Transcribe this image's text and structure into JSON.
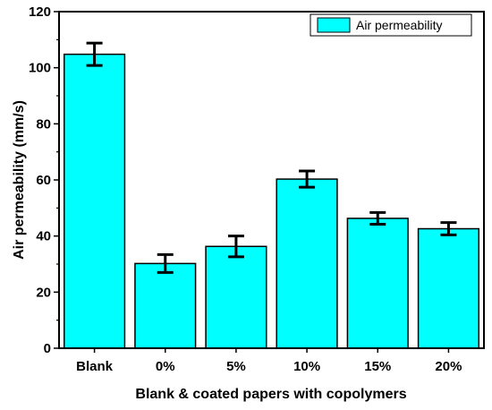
{
  "chart_data": {
    "type": "bar",
    "categories": [
      "Blank",
      "0%",
      "5%",
      "10%",
      "15%",
      "20%"
    ],
    "series": [
      {
        "name": "Air permeability",
        "values": [
          104.8,
          30.2,
          36.3,
          60.3,
          46.3,
          42.6
        ],
        "errors": [
          4.0,
          3.2,
          3.7,
          2.9,
          2.1,
          2.2
        ]
      }
    ],
    "xlabel": "Blank & coated papers with copolymers",
    "ylabel": "Air permeability (mm/s)",
    "ylim": [
      0,
      120
    ],
    "yticks": [
      0,
      20,
      40,
      60,
      80,
      100,
      120
    ],
    "grid": false,
    "legend_position": "top-right",
    "colors": {
      "bar_fill": "#00ffff",
      "bar_stroke": "#000000",
      "error_bar": "#000000"
    }
  }
}
